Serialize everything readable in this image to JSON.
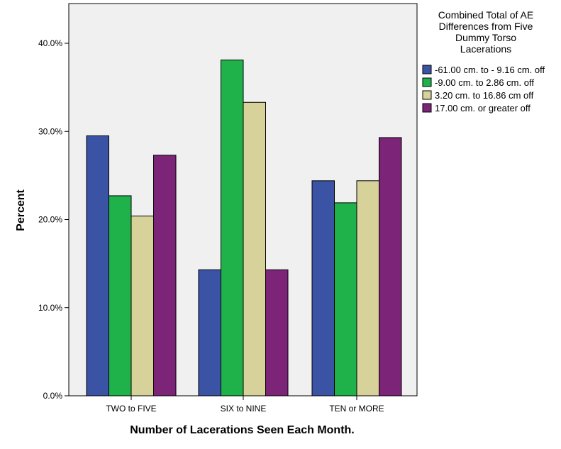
{
  "chart_data": {
    "type": "bar",
    "xlabel": "Number of Lacerations Seen Each Month.",
    "ylabel": "Percent",
    "ylim": [
      0,
      40
    ],
    "yticks": [
      "0.0%",
      "10.0%",
      "20.0%",
      "30.0%",
      "40.0%"
    ],
    "categories": [
      "TWO to FIVE",
      "SIX to NINE",
      "TEN or MORE"
    ],
    "legend_title": "Combined Total of AE Differences from Five Dummy Torso Lacerations",
    "legend_position": "right",
    "grid": false,
    "series": [
      {
        "name": "-61.00 cm. to - 9.16 cm. off",
        "color": "#3a53a4",
        "values": [
          29.5,
          14.3,
          24.4
        ]
      },
      {
        "name": "-9.00 cm. to 2.86 cm. off",
        "color": "#1fb14a",
        "values": [
          22.7,
          38.1,
          21.9
        ]
      },
      {
        "name": "3.20 cm. to 16.86 cm off",
        "color": "#d7d19a",
        "values": [
          20.4,
          33.3,
          24.4
        ]
      },
      {
        "name": "17.00 cm. or greater off",
        "color": "#7c2478",
        "values": [
          27.3,
          14.3,
          29.3
        ]
      }
    ],
    "plot_background": "#f0f0f0"
  }
}
